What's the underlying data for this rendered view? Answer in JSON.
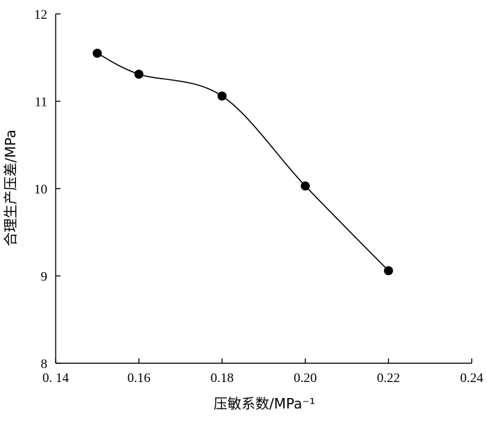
{
  "chart_data": {
    "type": "line",
    "xlabel": "压敏系数/MPa⁻¹",
    "ylabel": "合理生产压差/MPa",
    "xlim": [
      0.14,
      0.24
    ],
    "ylim": [
      8,
      12
    ],
    "x_ticks": [
      0.14,
      0.16,
      0.18,
      0.2,
      0.22,
      0.24
    ],
    "x_tick_labels": [
      "0. 14",
      "0.16",
      "0.18",
      "0.20",
      "0.22",
      "0.24"
    ],
    "y_ticks": [
      8,
      9,
      10,
      11,
      12
    ],
    "y_tick_labels": [
      "8",
      "9",
      "10",
      "11",
      "12"
    ],
    "grid": false,
    "series": [
      {
        "x": [
          0.15,
          0.16,
          0.18,
          0.2,
          0.22
        ],
        "y": [
          11.55,
          11.31,
          11.06,
          10.03,
          9.06
        ],
        "smooth": true,
        "marker": "filled-circle",
        "color": "#000000"
      }
    ]
  }
}
